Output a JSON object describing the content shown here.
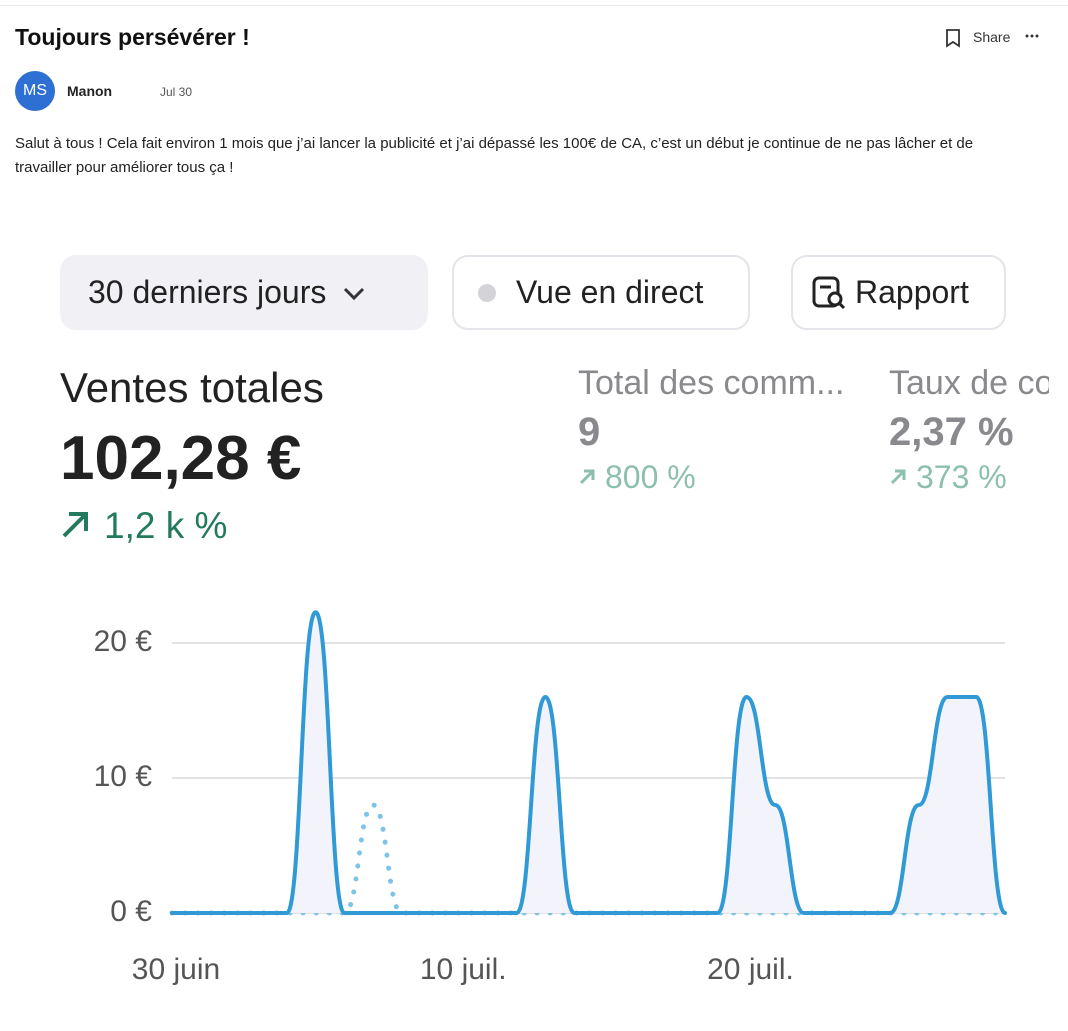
{
  "post": {
    "title": "Toujours persévérer !",
    "share": "Share",
    "author": {
      "initials": "MS",
      "name": "Manon"
    },
    "date": "Jul 30",
    "body": "Salut à tous ! Cela fait environ 1 mois que j’ai lancer la publicité et j’ai dépassé les 100€ de CA, c’est un début je continue de ne pas lâcher et de travailler pour améliorer tous ça !"
  },
  "controls": {
    "period": "30 derniers jours",
    "live": "Vue en direct",
    "report": "Rapport"
  },
  "metrics": [
    {
      "label": "Ventes totales",
      "value": "102,28 €",
      "change": "1,2 k %"
    },
    {
      "label": "Total des comm...",
      "value": "9",
      "change": "800 %"
    },
    {
      "label": "Taux de co",
      "value": "2,37 %",
      "change": "373 %"
    }
  ],
  "chart_data": {
    "type": "line",
    "categories": [
      "30 juin",
      null,
      null,
      null,
      null,
      null,
      null,
      null,
      null,
      null,
      "10 juil.",
      null,
      null,
      null,
      null,
      null,
      null,
      null,
      null,
      null,
      "20 juil.",
      null,
      null,
      null,
      null,
      null,
      null,
      null,
      null,
      null
    ],
    "series": [
      {
        "color": "#7ec3e8",
        "style": "dotted",
        "values": [
          0,
          0,
          0,
          0,
          0,
          0,
          0,
          8,
          0,
          0,
          0,
          0,
          0,
          0,
          0,
          0,
          0,
          0,
          0,
          0,
          0,
          0,
          0,
          0,
          0,
          0,
          0,
          0,
          0,
          0
        ]
      },
      {
        "color": "#2f9ad6",
        "style": "solid",
        "fill": "#f3f3fb",
        "values": [
          0,
          0,
          0,
          0,
          0,
          22.28,
          0,
          0,
          0,
          0,
          0,
          0,
          0,
          16,
          0,
          0,
          0,
          0,
          0,
          0,
          16,
          8,
          0,
          0,
          0,
          0,
          8,
          16,
          16,
          0
        ]
      }
    ],
    "ylim": [
      0,
      20
    ],
    "yticks": [
      {
        "value": 0,
        "label": "0 €"
      },
      {
        "value": 10,
        "label": "10 €"
      },
      {
        "value": 20,
        "label": "20 €"
      }
    ],
    "grid": true
  }
}
